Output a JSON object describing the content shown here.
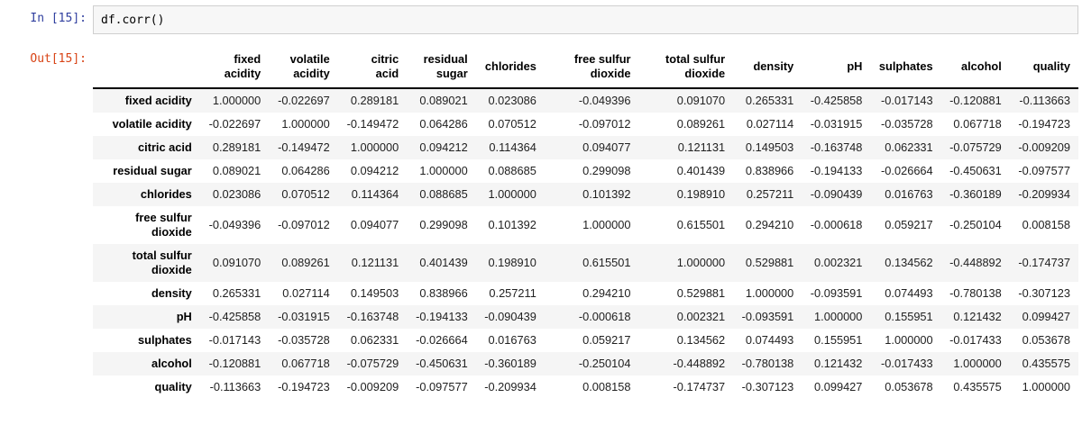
{
  "notebook": {
    "input_prompt": "In [15]:",
    "input_code": "df.corr()",
    "output_prompt": "Out[15]:"
  },
  "colors": {
    "input_prompt": "#303F9F",
    "output_prompt": "#D84315",
    "input_cell_bg": "#F7F7F7",
    "input_cell_border": "#CFCFCF",
    "row_stripe": "#F5F5F5",
    "header_border": "#000000"
  },
  "chart_data": {
    "type": "table",
    "title": "df.corr() correlation matrix output",
    "columns": [
      "fixed acidity",
      "volatile acidity",
      "citric acid",
      "residual sugar",
      "chlorides",
      "free sulfur dioxide",
      "total sulfur dioxide",
      "density",
      "pH",
      "sulphates",
      "alcohol",
      "quality"
    ],
    "rows": [
      {
        "label": "fixed acidity",
        "values": [
          "1.000000",
          "-0.022697",
          "0.289181",
          "0.089021",
          "0.023086",
          "-0.049396",
          "0.091070",
          "0.265331",
          "-0.425858",
          "-0.017143",
          "-0.120881",
          "-0.113663"
        ]
      },
      {
        "label": "volatile acidity",
        "values": [
          "-0.022697",
          "1.000000",
          "-0.149472",
          "0.064286",
          "0.070512",
          "-0.097012",
          "0.089261",
          "0.027114",
          "-0.031915",
          "-0.035728",
          "0.067718",
          "-0.194723"
        ]
      },
      {
        "label": "citric acid",
        "values": [
          "0.289181",
          "-0.149472",
          "1.000000",
          "0.094212",
          "0.114364",
          "0.094077",
          "0.121131",
          "0.149503",
          "-0.163748",
          "0.062331",
          "-0.075729",
          "-0.009209"
        ]
      },
      {
        "label": "residual sugar",
        "values": [
          "0.089021",
          "0.064286",
          "0.094212",
          "1.000000",
          "0.088685",
          "0.299098",
          "0.401439",
          "0.838966",
          "-0.194133",
          "-0.026664",
          "-0.450631",
          "-0.097577"
        ]
      },
      {
        "label": "chlorides",
        "values": [
          "0.023086",
          "0.070512",
          "0.114364",
          "0.088685",
          "1.000000",
          "0.101392",
          "0.198910",
          "0.257211",
          "-0.090439",
          "0.016763",
          "-0.360189",
          "-0.209934"
        ]
      },
      {
        "label": "free sulfur dioxide",
        "values": [
          "-0.049396",
          "-0.097012",
          "0.094077",
          "0.299098",
          "0.101392",
          "1.000000",
          "0.615501",
          "0.294210",
          "-0.000618",
          "0.059217",
          "-0.250104",
          "0.008158"
        ]
      },
      {
        "label": "total sulfur dioxide",
        "values": [
          "0.091070",
          "0.089261",
          "0.121131",
          "0.401439",
          "0.198910",
          "0.615501",
          "1.000000",
          "0.529881",
          "0.002321",
          "0.134562",
          "-0.448892",
          "-0.174737"
        ]
      },
      {
        "label": "density",
        "values": [
          "0.265331",
          "0.027114",
          "0.149503",
          "0.838966",
          "0.257211",
          "0.294210",
          "0.529881",
          "1.000000",
          "-0.093591",
          "0.074493",
          "-0.780138",
          "-0.307123"
        ]
      },
      {
        "label": "pH",
        "values": [
          "-0.425858",
          "-0.031915",
          "-0.163748",
          "-0.194133",
          "-0.090439",
          "-0.000618",
          "0.002321",
          "-0.093591",
          "1.000000",
          "0.155951",
          "0.121432",
          "0.099427"
        ]
      },
      {
        "label": "sulphates",
        "values": [
          "-0.017143",
          "-0.035728",
          "0.062331",
          "-0.026664",
          "0.016763",
          "0.059217",
          "0.134562",
          "0.074493",
          "0.155951",
          "1.000000",
          "-0.017433",
          "0.053678"
        ]
      },
      {
        "label": "alcohol",
        "values": [
          "-0.120881",
          "0.067718",
          "-0.075729",
          "-0.450631",
          "-0.360189",
          "-0.250104",
          "-0.448892",
          "-0.780138",
          "0.121432",
          "-0.017433",
          "1.000000",
          "0.435575"
        ]
      },
      {
        "label": "quality",
        "values": [
          "-0.113663",
          "-0.194723",
          "-0.009209",
          "-0.097577",
          "-0.209934",
          "0.008158",
          "-0.174737",
          "-0.307123",
          "0.099427",
          "0.053678",
          "0.435575",
          "1.000000"
        ]
      }
    ]
  }
}
